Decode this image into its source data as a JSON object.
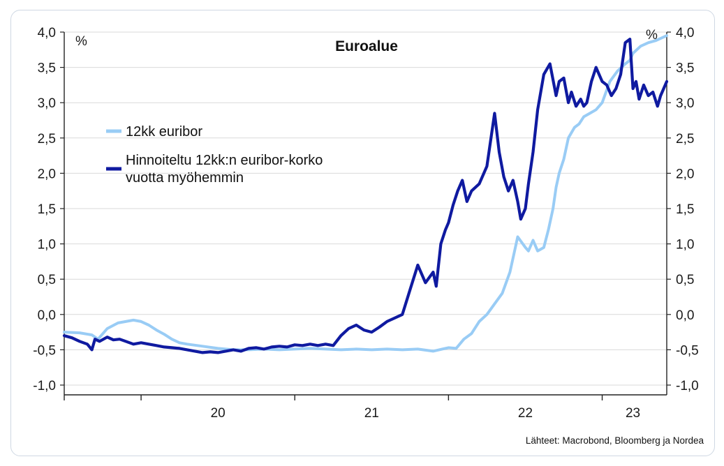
{
  "chart_data": {
    "type": "line",
    "title": "Euroalue",
    "left_unit": "%",
    "right_unit": "%",
    "ylim": [
      -1.0,
      4.0
    ],
    "yticks": [
      "-1,0",
      "-0,5",
      "0,0",
      "0,5",
      "1,0",
      "1,5",
      "2,0",
      "2,5",
      "3,0",
      "3,5",
      "4,0"
    ],
    "ytick_values": [
      -1.0,
      -0.5,
      0.0,
      0.5,
      1.0,
      1.5,
      2.0,
      2.5,
      3.0,
      3.5,
      4.0
    ],
    "xlim": [
      2019.5,
      2023.42
    ],
    "xticks": [
      "20",
      "21",
      "22",
      "23"
    ],
    "xtick_positions": [
      2020.5,
      2021.5,
      2022.5,
      2023.2
    ],
    "x_boundaries": [
      2019.5,
      2020.0,
      2021.0,
      2022.0,
      2023.0
    ],
    "grid": true,
    "legend_position": "upper-left",
    "source": "Lähteet: Macrobond, Bloomberg ja Nordea",
    "series": [
      {
        "name": "12kk euribor",
        "color": "#99ccf5",
        "x": [
          2019.5,
          2019.6,
          2019.68,
          2019.72,
          2019.78,
          2019.85,
          2019.9,
          2019.95,
          2020.0,
          2020.05,
          2020.1,
          2020.15,
          2020.2,
          2020.25,
          2020.3,
          2020.4,
          2020.5,
          2020.6,
          2020.7,
          2020.8,
          2020.9,
          2021.0,
          2021.1,
          2021.2,
          2021.3,
          2021.4,
          2021.5,
          2021.6,
          2021.7,
          2021.8,
          2021.9,
          2022.0,
          2022.05,
          2022.1,
          2022.15,
          2022.2,
          2022.25,
          2022.3,
          2022.35,
          2022.4,
          2022.45,
          2022.5,
          2022.52,
          2022.55,
          2022.58,
          2022.62,
          2022.65,
          2022.68,
          2022.7,
          2022.72,
          2022.75,
          2022.78,
          2022.82,
          2022.85,
          2022.88,
          2022.92,
          2022.96,
          2023.0,
          2023.05,
          2023.1,
          2023.15,
          2023.18,
          2023.2,
          2023.25,
          2023.3,
          2023.35,
          2023.42
        ],
        "values": [
          -0.25,
          -0.26,
          -0.29,
          -0.35,
          -0.2,
          -0.12,
          -0.1,
          -0.08,
          -0.1,
          -0.15,
          -0.22,
          -0.28,
          -0.35,
          -0.4,
          -0.42,
          -0.45,
          -0.48,
          -0.5,
          -0.5,
          -0.49,
          -0.5,
          -0.49,
          -0.48,
          -0.49,
          -0.5,
          -0.49,
          -0.5,
          -0.49,
          -0.5,
          -0.49,
          -0.52,
          -0.47,
          -0.48,
          -0.35,
          -0.27,
          -0.1,
          0.0,
          0.15,
          0.3,
          0.6,
          1.1,
          0.95,
          0.9,
          1.05,
          0.9,
          0.95,
          1.2,
          1.5,
          1.8,
          2.0,
          2.2,
          2.5,
          2.65,
          2.7,
          2.8,
          2.85,
          2.9,
          3.0,
          3.3,
          3.45,
          3.55,
          3.6,
          3.7,
          3.8,
          3.85,
          3.88,
          3.95
        ]
      },
      {
        "name": "Hinnoiteltu 12kk:n euribor-korko vuotta myöhemmin",
        "color": "#0f1aa0",
        "x": [
          2019.5,
          2019.55,
          2019.6,
          2019.65,
          2019.68,
          2019.7,
          2019.73,
          2019.78,
          2019.82,
          2019.86,
          2019.9,
          2019.95,
          2020.0,
          2020.05,
          2020.1,
          2020.15,
          2020.2,
          2020.25,
          2020.3,
          2020.35,
          2020.4,
          2020.45,
          2020.5,
          2020.55,
          2020.6,
          2020.65,
          2020.7,
          2020.75,
          2020.8,
          2020.85,
          2020.9,
          2020.95,
          2021.0,
          2021.05,
          2021.1,
          2021.15,
          2021.2,
          2021.25,
          2021.3,
          2021.35,
          2021.4,
          2021.45,
          2021.5,
          2021.55,
          2021.6,
          2021.65,
          2021.7,
          2021.75,
          2021.8,
          2021.85,
          2021.9,
          2021.92,
          2021.95,
          2021.98,
          2022.0,
          2022.03,
          2022.06,
          2022.09,
          2022.12,
          2022.15,
          2022.2,
          2022.25,
          2022.3,
          2022.33,
          2022.36,
          2022.39,
          2022.42,
          2022.45,
          2022.47,
          2022.5,
          2022.52,
          2022.55,
          2022.58,
          2022.62,
          2022.66,
          2022.7,
          2022.72,
          2022.75,
          2022.78,
          2022.8,
          2022.83,
          2022.86,
          2022.88,
          2022.9,
          2022.93,
          2022.96,
          2023.0,
          2023.03,
          2023.06,
          2023.09,
          2023.12,
          2023.15,
          2023.18,
          2023.2,
          2023.22,
          2023.24,
          2023.27,
          2023.3,
          2023.33,
          2023.36,
          2023.38,
          2023.4,
          2023.42
        ],
        "values": [
          -0.3,
          -0.33,
          -0.38,
          -0.42,
          -0.5,
          -0.35,
          -0.38,
          -0.32,
          -0.36,
          -0.35,
          -0.38,
          -0.42,
          -0.4,
          -0.42,
          -0.44,
          -0.46,
          -0.47,
          -0.48,
          -0.5,
          -0.52,
          -0.54,
          -0.53,
          -0.54,
          -0.52,
          -0.5,
          -0.52,
          -0.48,
          -0.47,
          -0.49,
          -0.46,
          -0.45,
          -0.46,
          -0.43,
          -0.44,
          -0.42,
          -0.44,
          -0.42,
          -0.44,
          -0.3,
          -0.2,
          -0.15,
          -0.22,
          -0.25,
          -0.18,
          -0.1,
          -0.05,
          0.0,
          0.35,
          0.7,
          0.45,
          0.6,
          0.4,
          1.0,
          1.2,
          1.3,
          1.55,
          1.75,
          1.9,
          1.6,
          1.75,
          1.85,
          2.1,
          2.85,
          2.3,
          1.95,
          1.75,
          1.9,
          1.6,
          1.35,
          1.5,
          1.85,
          2.3,
          2.9,
          3.4,
          3.55,
          3.1,
          3.3,
          3.35,
          3.0,
          3.15,
          2.95,
          3.05,
          2.95,
          3.0,
          3.3,
          3.5,
          3.3,
          3.25,
          3.1,
          3.2,
          3.4,
          3.85,
          3.9,
          3.2,
          3.3,
          3.05,
          3.25,
          3.1,
          3.15,
          2.95,
          3.1,
          3.2,
          3.3
        ]
      }
    ]
  }
}
